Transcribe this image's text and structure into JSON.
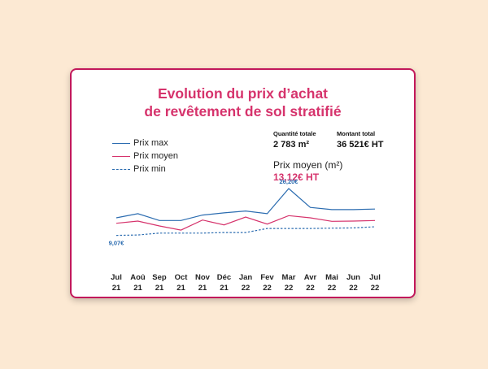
{
  "title_line1": "Evolution du prix d’achat",
  "title_line2": "de revêtement de sol stratifié",
  "stats": {
    "qty_label": "Quantité totale",
    "qty_value": "2 783 m²",
    "total_label": "Montant total",
    "total_value": "36 521€ HT"
  },
  "average": {
    "label": "Prix moyen (m²)",
    "value": "13,12€ HT"
  },
  "colors": {
    "max": "#2b6cb0",
    "avg": "#d6336c",
    "min": "#2b6cb0",
    "accent": "#d6336c"
  },
  "chart_data": {
    "type": "line",
    "categories": [
      [
        "Jul",
        "21"
      ],
      [
        "Aoû",
        "21"
      ],
      [
        "Sep",
        "21"
      ],
      [
        "Oct",
        "21"
      ],
      [
        "Nov",
        "21"
      ],
      [
        "Déc",
        "21"
      ],
      [
        "Jan",
        "22"
      ],
      [
        "Fev",
        "22"
      ],
      [
        "Mar",
        "22"
      ],
      [
        "Avr",
        "22"
      ],
      [
        "Mai",
        "22"
      ],
      [
        "Jun",
        "22"
      ],
      [
        "Jul",
        "22"
      ]
    ],
    "series": [
      {
        "name": "Prix max",
        "style": "solid",
        "values": [
          15.5,
          17.0,
          14.5,
          14.5,
          16.5,
          17.3,
          18.0,
          17.0,
          26.2,
          19.3,
          18.5,
          18.5,
          18.7
        ]
      },
      {
        "name": "Prix moyen",
        "style": "solid",
        "values": [
          13.5,
          14.3,
          12.5,
          11.0,
          14.7,
          12.9,
          15.8,
          13.2,
          16.3,
          15.5,
          14.2,
          14.3,
          14.5
        ]
      },
      {
        "name": "Prix min",
        "style": "dashed",
        "values": [
          9.07,
          9.2,
          9.9,
          9.9,
          9.9,
          10.1,
          10.1,
          11.6,
          11.6,
          11.6,
          11.7,
          11.8,
          12.2
        ]
      }
    ],
    "data_labels": [
      {
        "series": 0,
        "index": 8,
        "text": "26,20€"
      },
      {
        "series": 2,
        "index": 0,
        "text": "9,07€"
      }
    ],
    "ylim": [
      0,
      28
    ]
  }
}
